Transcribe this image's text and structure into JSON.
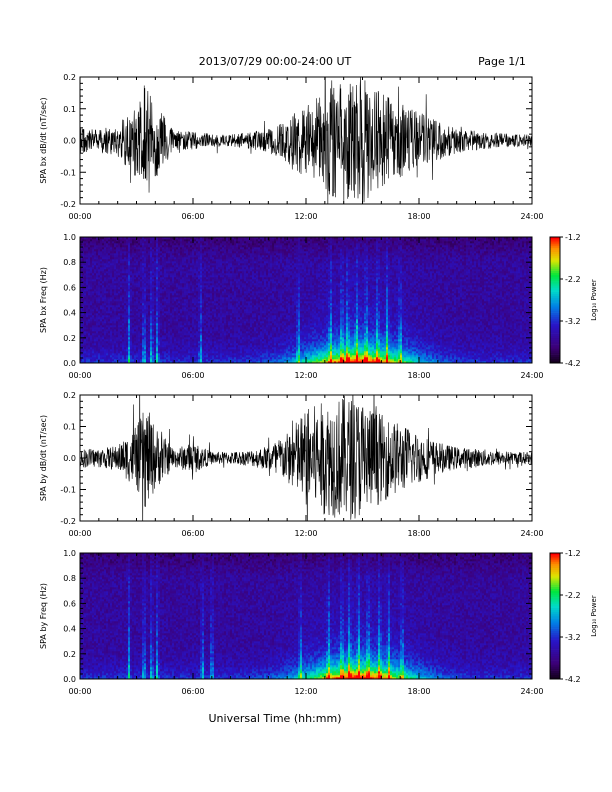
{
  "header": {
    "title": "2013/07/29  00:00-24:00 UT",
    "page": "Page 1/1"
  },
  "footer": {
    "xlabel": "Universal Time (hh:mm)"
  },
  "colors": {
    "trace": "#000000",
    "spectrogram_background": "#1a0030"
  },
  "colorbar": {
    "label": "Log₁₀ Power",
    "ticks": [
      "-1.2",
      "-2.2",
      "-3.2",
      "-4.2"
    ],
    "range": [
      -4.2,
      -1.2
    ],
    "colormap": "rainbow (black-purple-blue-cyan-green-yellow-red)"
  },
  "chart_data": [
    {
      "type": "line",
      "ylabel": "SPA bx dB/dt (nT/sec)",
      "xlim": [
        "00:00",
        "24:00"
      ],
      "ylim": [
        -0.2,
        0.2
      ],
      "xticks": [
        "00:00",
        "06:00",
        "12:00",
        "18:00",
        "24:00"
      ],
      "yticks": [
        "-0.2",
        "-0.1",
        "0.0",
        "0.1",
        "0.2"
      ],
      "activity_profile": {
        "hours": [
          0,
          1,
          2,
          3,
          3.5,
          4,
          5,
          6,
          7,
          8,
          9,
          10,
          11,
          12,
          13,
          14,
          15,
          16,
          17,
          18,
          19,
          20,
          21,
          22,
          23,
          24
        ],
        "amplitude": [
          0.04,
          0.035,
          0.05,
          0.12,
          0.2,
          0.12,
          0.03,
          0.03,
          0.02,
          0.02,
          0.025,
          0.04,
          0.07,
          0.12,
          0.16,
          0.2,
          0.2,
          0.15,
          0.12,
          0.09,
          0.06,
          0.04,
          0.03,
          0.025,
          0.02,
          0.02
        ]
      }
    },
    {
      "type": "heatmap",
      "ylabel": "SPA bx Freq (Hz)",
      "xlim": [
        "00:00",
        "24:00"
      ],
      "ylim": [
        0.0,
        1.0
      ],
      "xticks": [
        "00:00",
        "06:00",
        "12:00",
        "18:00",
        "24:00"
      ],
      "yticks": [
        "0.0",
        "0.2",
        "0.4",
        "0.6",
        "0.8",
        "1.0"
      ],
      "zlabel": "Log₁₀ Power",
      "zlim": [
        -4.2,
        -1.2
      ],
      "bright_columns_hours": [
        2.6,
        3.4,
        3.8,
        4.1,
        6.4,
        11.6,
        13.3,
        13.9,
        14.2,
        14.7,
        15.2,
        15.8,
        16.3,
        17.0
      ]
    },
    {
      "type": "line",
      "ylabel": "SPA by dB/dt (nT/sec)",
      "xlim": [
        "00:00",
        "24:00"
      ],
      "ylim": [
        -0.2,
        0.2
      ],
      "xticks": [
        "00:00",
        "06:00",
        "12:00",
        "18:00",
        "24:00"
      ],
      "yticks": [
        "-0.2",
        "-0.1",
        "0.0",
        "0.1",
        "0.2"
      ],
      "activity_profile": {
        "hours": [
          0,
          1,
          2,
          3,
          3.5,
          4,
          5,
          6,
          7,
          8,
          9,
          10,
          11,
          12,
          13,
          14,
          15,
          16,
          17,
          18,
          19,
          20,
          21,
          22,
          23,
          24
        ],
        "amplitude": [
          0.03,
          0.03,
          0.04,
          0.1,
          0.17,
          0.1,
          0.03,
          0.05,
          0.02,
          0.02,
          0.025,
          0.04,
          0.08,
          0.16,
          0.18,
          0.2,
          0.19,
          0.14,
          0.11,
          0.08,
          0.05,
          0.035,
          0.03,
          0.025,
          0.02,
          0.02
        ]
      }
    },
    {
      "type": "heatmap",
      "ylabel": "SPA by Freq (Hz)",
      "xlim": [
        "00:00",
        "24:00"
      ],
      "ylim": [
        0.0,
        1.0
      ],
      "xticks": [
        "00:00",
        "06:00",
        "12:00",
        "18:00",
        "24:00"
      ],
      "yticks": [
        "0.0",
        "0.2",
        "0.4",
        "0.6",
        "0.8",
        "1.0"
      ],
      "zlabel": "Log₁₀ Power",
      "zlim": [
        -4.2,
        -1.2
      ],
      "bright_columns_hours": [
        2.6,
        3.4,
        3.8,
        4.1,
        6.5,
        7.0,
        11.7,
        13.2,
        13.9,
        14.3,
        14.8,
        15.3,
        15.9,
        16.4,
        17.1
      ]
    }
  ]
}
